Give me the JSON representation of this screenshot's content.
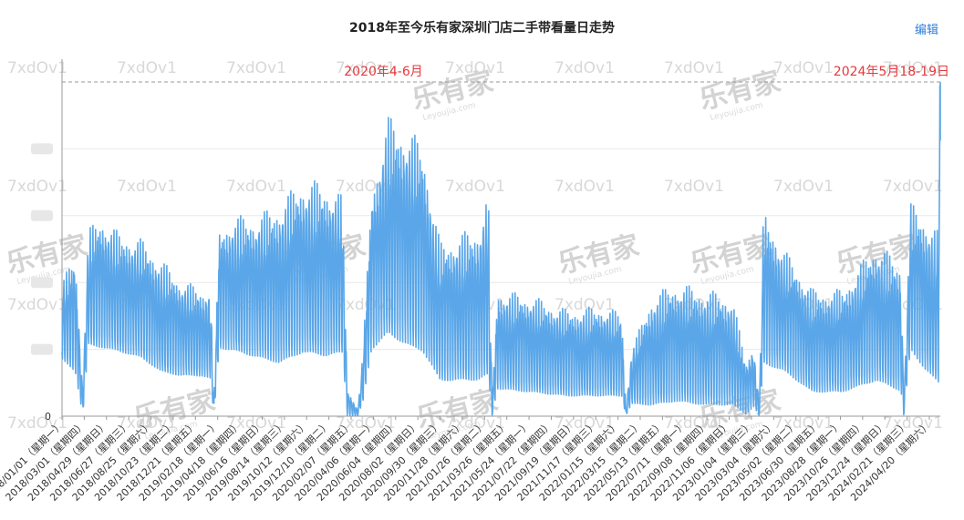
{
  "title": "2018年至今乐有家深圳门店二手带看量日走势",
  "edit_label": "编辑",
  "watermark": {
    "code": "7xdOv1",
    "logo": "乐有家",
    "logo_sub": "Leyoujia.com"
  },
  "colors": {
    "series": "#5aa6e8",
    "annotation": "#e4393c",
    "grid": "#e8e8e8",
    "axis": "#999999",
    "edit": "#2f7ed8"
  },
  "chart_data": {
    "type": "line",
    "title": "2018年至今乐有家深圳门店二手带看量日走势",
    "xlabel": "",
    "ylabel": "",
    "y_axis_labels_blurred": true,
    "y_zero_label": "0",
    "ylim": [
      0,
      100
    ],
    "grid": true,
    "x_tick_labels": [
      "2018/01/01（星期一）",
      "2018/03/01（星期四）",
      "2018/04/29（星期日）",
      "2018/06/27（星期三）",
      "2018/08/25（星期六）",
      "2018/10/23（星期二）",
      "2018/12/21（星期五）",
      "2019/02/18（星期一）",
      "2019/04/18（星期四）",
      "2019/06/16（星期日）",
      "2019/08/14（星期三）",
      "2019/10/12（星期六）",
      "2019/12/10（星期二）",
      "2020/02/07（星期五）",
      "2020/04/06（星期一）",
      "2020/06/04（星期四）",
      "2020/08/02（星期日）",
      "2020/09/30（星期三）",
      "2020/11/28（星期六）",
      "2021/01/26（星期二）",
      "2021/03/26（星期五）",
      "2021/05/24（星期一）",
      "2021/07/22（星期四）",
      "2021/09/19（星期日）",
      "2021/11/17（星期三）",
      "2022/01/15（星期六）",
      "2022/03/15（星期二）",
      "2022/05/13（星期五）",
      "2022/07/11（星期一）",
      "2022/09/08（星期四）",
      "2022/11/06（星期日）",
      "2023/01/04（星期三）",
      "2023/03/04（星期六）",
      "2023/05/02（星期二）",
      "2023/06/30（星期五）",
      "2023/08/28（星期一）",
      "2023/10/26（星期四）",
      "2023/12/24（星期日）",
      "2024/02/21（星期三）",
      "2024/04/20（星期六）"
    ],
    "series": [
      {
        "envelope": [
          {
            "x": "2018/01/01",
            "low": 16,
            "high": 40
          },
          {
            "x": "2018/02/05",
            "low": 12,
            "high": 49
          },
          {
            "x": "2018/02/25",
            "low": 0,
            "high": 8
          },
          {
            "x": "2018/03/12",
            "low": 20,
            "high": 56
          },
          {
            "x": "2018/04/15",
            "low": 19,
            "high": 60
          },
          {
            "x": "2018/06/01",
            "low": 18,
            "high": 55
          },
          {
            "x": "2018/08/01",
            "low": 16,
            "high": 53
          },
          {
            "x": "2018/09/20",
            "low": 12,
            "high": 47
          },
          {
            "x": "2018/11/10",
            "low": 11,
            "high": 41
          },
          {
            "x": "2019/01/10",
            "low": 11,
            "high": 38
          },
          {
            "x": "2019/01/30",
            "low": 10,
            "high": 39
          },
          {
            "x": "2019/02/08",
            "low": 0,
            "high": 5
          },
          {
            "x": "2019/02/22",
            "low": 19,
            "high": 56
          },
          {
            "x": "2019/04/01",
            "low": 18,
            "high": 60
          },
          {
            "x": "2019/06/01",
            "low": 16,
            "high": 60
          },
          {
            "x": "2019/08/01",
            "low": 14,
            "high": 64
          },
          {
            "x": "2019/10/01",
            "low": 17,
            "high": 71
          },
          {
            "x": "2019/12/01",
            "low": 16,
            "high": 70
          },
          {
            "x": "2020/01/15",
            "low": 17,
            "high": 66
          },
          {
            "x": "2020/01/28",
            "low": 0,
            "high": 8
          },
          {
            "x": "2020/02/25",
            "low": 0,
            "high": 2
          },
          {
            "x": "2020/03/10",
            "low": 4,
            "high": 20
          },
          {
            "x": "2020/04/01",
            "low": 18,
            "high": 68
          },
          {
            "x": "2020/05/15",
            "low": 22,
            "high": 90
          },
          {
            "x": "2020/07/15",
            "low": 18,
            "high": 85
          },
          {
            "x": "2020/08/15",
            "low": 17,
            "high": 82
          },
          {
            "x": "2020/09/30",
            "low": 9,
            "high": 52
          },
          {
            "x": "2021/01/10",
            "low": 9,
            "high": 57
          },
          {
            "x": "2021/02/05",
            "low": 10,
            "high": 68
          },
          {
            "x": "2021/02/15",
            "low": 0,
            "high": 3
          },
          {
            "x": "2021/03/01",
            "low": 7,
            "high": 38
          },
          {
            "x": "2021/06/01",
            "low": 6,
            "high": 36
          },
          {
            "x": "2021/09/01",
            "low": 5,
            "high": 32
          },
          {
            "x": "2021/12/01",
            "low": 5,
            "high": 33
          },
          {
            "x": "2022/01/25",
            "low": 5,
            "high": 31
          },
          {
            "x": "2022/02/05",
            "low": 0,
            "high": 2
          },
          {
            "x": "2022/02/20",
            "low": 3,
            "high": 20
          },
          {
            "x": "2022/04/15",
            "low": 2,
            "high": 36
          },
          {
            "x": "2022/06/15",
            "low": 3,
            "high": 40
          },
          {
            "x": "2022/09/01",
            "low": 2,
            "high": 38
          },
          {
            "x": "2022/11/15",
            "low": 2,
            "high": 36
          },
          {
            "x": "2022/12/20",
            "low": 0,
            "high": 16
          },
          {
            "x": "2023/01/10",
            "low": 2,
            "high": 22
          },
          {
            "x": "2023/01/25",
            "low": 0,
            "high": 3
          },
          {
            "x": "2023/02/05",
            "low": 14,
            "high": 62
          },
          {
            "x": "2023/04/01",
            "low": 12,
            "high": 50
          },
          {
            "x": "2023/06/15",
            "low": 6,
            "high": 38
          },
          {
            "x": "2023/09/01",
            "low": 6,
            "high": 38
          },
          {
            "x": "2023/12/01",
            "low": 9,
            "high": 52
          },
          {
            "x": "2024/02/05",
            "low": 6,
            "high": 46
          },
          {
            "x": "2024/02/12",
            "low": 0,
            "high": 3
          },
          {
            "x": "2024/03/01",
            "low": 18,
            "high": 64
          },
          {
            "x": "2024/04/10",
            "low": 12,
            "high": 60
          },
          {
            "x": "2024/05/15",
            "low": 8,
            "high": 55
          },
          {
            "x": "2024/05/18",
            "low": 60,
            "high": 100
          },
          {
            "x": "2024/05/19",
            "low": 60,
            "high": 100
          }
        ]
      }
    ],
    "annotations": [
      {
        "text": "2020年4-6月",
        "x": "2020/05/15",
        "y": 100
      },
      {
        "text": "2024年5月18-19日",
        "x": "2024/05/19",
        "y": 100
      }
    ],
    "peak_reference_line": {
      "y": 100,
      "style": "dashed"
    }
  }
}
